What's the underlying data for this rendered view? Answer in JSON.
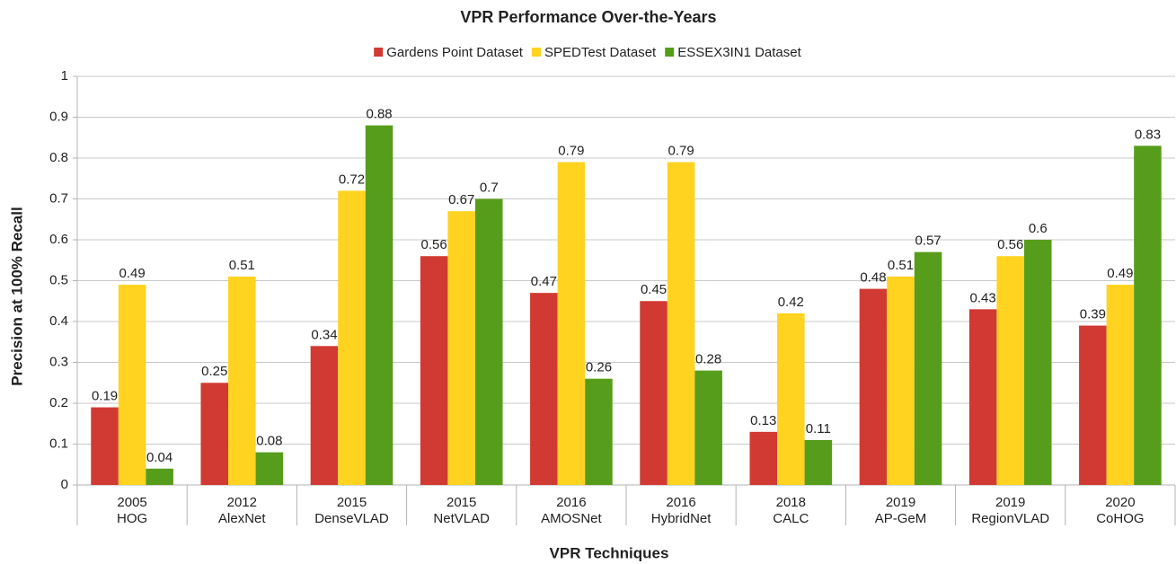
{
  "chart_data": {
    "type": "bar",
    "title": "VPR Performance Over-the-Years",
    "x_label": "VPR Techniques",
    "y_label": "Precision at 100% Recall",
    "categories": [
      [
        "2005",
        "HOG"
      ],
      [
        "2012",
        "AlexNet"
      ],
      [
        "2015",
        "DenseVLAD"
      ],
      [
        "2015",
        "NetVLAD"
      ],
      [
        "2016",
        "AMOSNet"
      ],
      [
        "2016",
        "HybridNet"
      ],
      [
        "2018",
        "CALC"
      ],
      [
        "2019",
        "AP-GeM"
      ],
      [
        "2019",
        "RegionVLAD"
      ],
      [
        "2020",
        "CoHOG"
      ]
    ],
    "series": [
      {
        "name": "Gardens Point Dataset",
        "color": "#d13a32",
        "values": [
          0.19,
          0.25,
          0.34,
          0.56,
          0.47,
          0.45,
          0.13,
          0.48,
          0.43,
          0.39
        ]
      },
      {
        "name": "SPEDTest Dataset",
        "color": "#ffd320",
        "values": [
          0.49,
          0.51,
          0.72,
          0.67,
          0.79,
          0.79,
          0.42,
          0.51,
          0.56,
          0.49
        ]
      },
      {
        "name": "ESSEX3IN1 Dataset",
        "color": "#579d1c",
        "values": [
          0.04,
          0.08,
          0.88,
          0.7,
          0.26,
          0.28,
          0.11,
          0.57,
          0.6,
          0.83
        ]
      }
    ],
    "ylim": [
      0,
      1
    ],
    "yticks": [
      0,
      0.1,
      0.2,
      0.3,
      0.4,
      0.5,
      0.6,
      0.7,
      0.8,
      0.9,
      1
    ],
    "grid": true,
    "legend": "top"
  }
}
